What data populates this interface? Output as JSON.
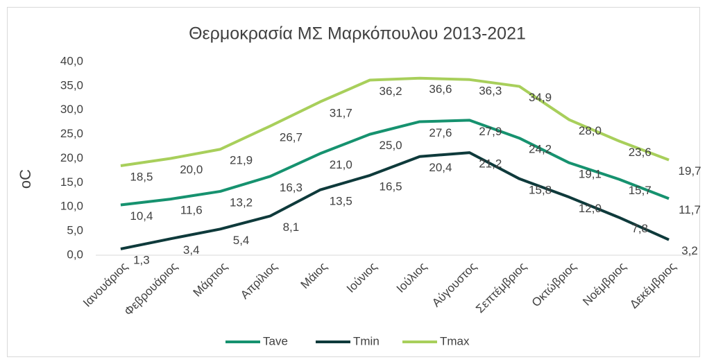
{
  "chart_data": {
    "type": "line",
    "title": "Θερμοκρασία ΜΣ Μαρκόπουλου 2013-2021",
    "ylabel": "oC",
    "categories": [
      "Ιανουάριος",
      "Φεβρουάριος",
      "Μάρτιος",
      "Απρίλιος",
      "Μάιος",
      "Ιούνιος",
      "Ιούλιος",
      "Αύγουστος",
      "Σεπτέμβριος",
      "Οκτώβριος",
      "Νοέμβριος",
      "Δεκέμβριος"
    ],
    "series": [
      {
        "name": "Tave",
        "color": "#16926f",
        "values": [
          10.4,
          11.6,
          13.2,
          16.3,
          21.0,
          25.0,
          27.6,
          27.9,
          24.2,
          19.1,
          15.7,
          11.7
        ],
        "value_labels": [
          "10,4",
          "11,6",
          "13,2",
          "16,3",
          "21,0",
          "25,0",
          "27,6",
          "27,9",
          "24,2",
          "19,1",
          "15,7",
          "11,7"
        ]
      },
      {
        "name": "Tmin",
        "color": "#0e3a3b",
        "values": [
          1.3,
          3.4,
          5.4,
          8.1,
          13.5,
          16.5,
          20.4,
          21.2,
          15.8,
          12.0,
          7.8,
          3.2
        ],
        "value_labels": [
          "1,3",
          "3,4",
          "5,4",
          "8,1",
          "13,5",
          "16,5",
          "20,4",
          "21,2",
          "15,8",
          "12,0",
          "7,8",
          "3,2"
        ]
      },
      {
        "name": "Tmax",
        "color": "#a8cf5b",
        "values": [
          18.5,
          20.0,
          21.9,
          26.7,
          31.7,
          36.2,
          36.6,
          36.3,
          34.9,
          28.0,
          23.6,
          19.7
        ],
        "value_labels": [
          "18,5",
          "20,0",
          "21,9",
          "26,7",
          "31,7",
          "36,2",
          "36,6",
          "36,3",
          "34,9",
          "28,0",
          "23,6",
          "19,7"
        ]
      }
    ],
    "ylim": [
      0,
      40
    ],
    "yticks": [
      {
        "value": 0,
        "label": "0,0"
      },
      {
        "value": 5,
        "label": "5,0"
      },
      {
        "value": 10,
        "label": "10,0"
      },
      {
        "value": 15,
        "label": "15,0"
      },
      {
        "value": 20,
        "label": "20,0"
      },
      {
        "value": 25,
        "label": "25,0"
      },
      {
        "value": 30,
        "label": "30,0"
      },
      {
        "value": 35,
        "label": "35,0"
      },
      {
        "value": 40,
        "label": "40,0"
      }
    ],
    "grid": false,
    "legend": "bottom"
  }
}
